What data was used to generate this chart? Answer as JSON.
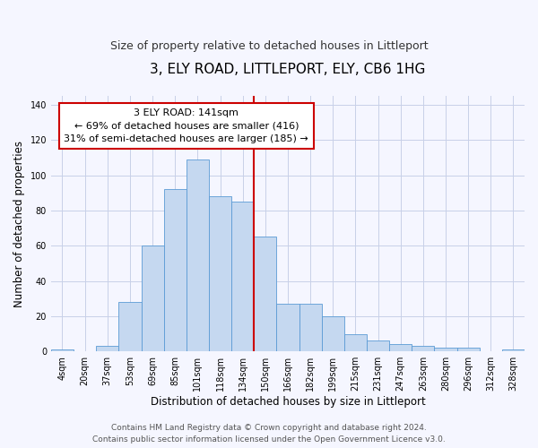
{
  "title": "3, ELY ROAD, LITTLEPORT, ELY, CB6 1HG",
  "subtitle": "Size of property relative to detached houses in Littleport",
  "xlabel": "Distribution of detached houses by size in Littleport",
  "ylabel": "Number of detached properties",
  "bin_labels": [
    "4sqm",
    "20sqm",
    "37sqm",
    "53sqm",
    "69sqm",
    "85sqm",
    "101sqm",
    "118sqm",
    "134sqm",
    "150sqm",
    "166sqm",
    "182sqm",
    "199sqm",
    "215sqm",
    "231sqm",
    "247sqm",
    "263sqm",
    "280sqm",
    "296sqm",
    "312sqm",
    "328sqm"
  ],
  "bar_heights": [
    1,
    0,
    3,
    28,
    60,
    92,
    109,
    88,
    85,
    65,
    27,
    27,
    20,
    10,
    6,
    4,
    3,
    2,
    2,
    0,
    1
  ],
  "bar_color": "#c5d8f0",
  "bar_edge_color": "#5b9bd5",
  "property_line_label": "3 ELY ROAD: 141sqm",
  "annotation_line1": "← 69% of detached houses are smaller (416)",
  "annotation_line2": "31% of semi-detached houses are larger (185) →",
  "annotation_box_color": "#ffffff",
  "annotation_box_edge_color": "#cc0000",
  "vline_color": "#cc0000",
  "vline_x_bar_index": 9.0,
  "ylim": [
    0,
    145
  ],
  "yticks": [
    0,
    20,
    40,
    60,
    80,
    100,
    120,
    140
  ],
  "footer_line1": "Contains HM Land Registry data © Crown copyright and database right 2024.",
  "footer_line2": "Contains public sector information licensed under the Open Government Licence v3.0.",
  "background_color": "#f5f6ff",
  "grid_color": "#c8d0e8",
  "title_fontsize": 11,
  "subtitle_fontsize": 9,
  "axis_label_fontsize": 8.5,
  "tick_fontsize": 7,
  "footer_fontsize": 6.5,
  "annotation_fontsize": 8
}
